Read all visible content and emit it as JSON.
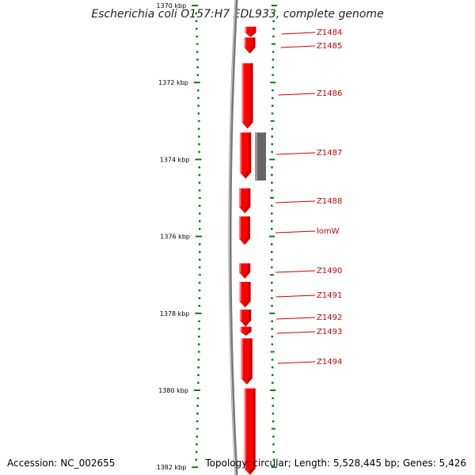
{
  "title": "Escherichia coli O157:H7 EDL933, complete genome",
  "footer": {
    "accession": "Accession: NC_002655",
    "topology": "Topology: circular; Length: 5,528,445 bp; Genes: 5,426"
  },
  "colors": {
    "gene": "#ff0000",
    "gene_shade": "#c80000",
    "other_feature": "#666666",
    "backbone": "#777777",
    "ticks": "#117711",
    "label": "#cc0000"
  },
  "axis": {
    "unit": "kbp",
    "range_kbp": [
      1370,
      1382
    ],
    "major_ticks": [
      {
        "kbp": 1370,
        "label": "1370 kbp"
      },
      {
        "kbp": 1372,
        "label": "1372 kbp"
      },
      {
        "kbp": 1374,
        "label": "1374 kbp"
      },
      {
        "kbp": 1376,
        "label": "1376 kbp"
      },
      {
        "kbp": 1378,
        "label": "1378 kbp"
      },
      {
        "kbp": 1380,
        "label": "1380 kbp"
      },
      {
        "kbp": 1382,
        "label": "1382 kbp"
      }
    ],
    "minor_step_kbp": 0.2
  },
  "genes": [
    {
      "name": "Z1484",
      "start_kbp": 1370.55,
      "end_kbp": 1370.82
    },
    {
      "name": "Z1485",
      "start_kbp": 1370.83,
      "end_kbp": 1371.25
    },
    {
      "name": "Z1486",
      "start_kbp": 1371.5,
      "end_kbp": 1373.2
    },
    {
      "name": "Z1487",
      "start_kbp": 1373.3,
      "end_kbp": 1374.5
    },
    {
      "name": "Z1488",
      "start_kbp": 1374.75,
      "end_kbp": 1375.4
    },
    {
      "name": "lomW",
      "start_kbp": 1375.48,
      "end_kbp": 1376.22
    },
    {
      "name": "Z1490",
      "start_kbp": 1376.7,
      "end_kbp": 1377.1
    },
    {
      "name": "Z1491",
      "start_kbp": 1377.18,
      "end_kbp": 1377.85
    },
    {
      "name": "Z1492",
      "start_kbp": 1377.9,
      "end_kbp": 1378.35
    },
    {
      "name": "Z1493",
      "start_kbp": 1378.35,
      "end_kbp": 1378.58
    },
    {
      "name": "Z1494",
      "start_kbp": 1378.65,
      "end_kbp": 1379.85
    },
    {
      "name": "",
      "start_kbp": 1379.95,
      "end_kbp": 1382.2
    }
  ],
  "other_features": [
    {
      "start_kbp": 1373.3,
      "end_kbp": 1374.55
    }
  ]
}
